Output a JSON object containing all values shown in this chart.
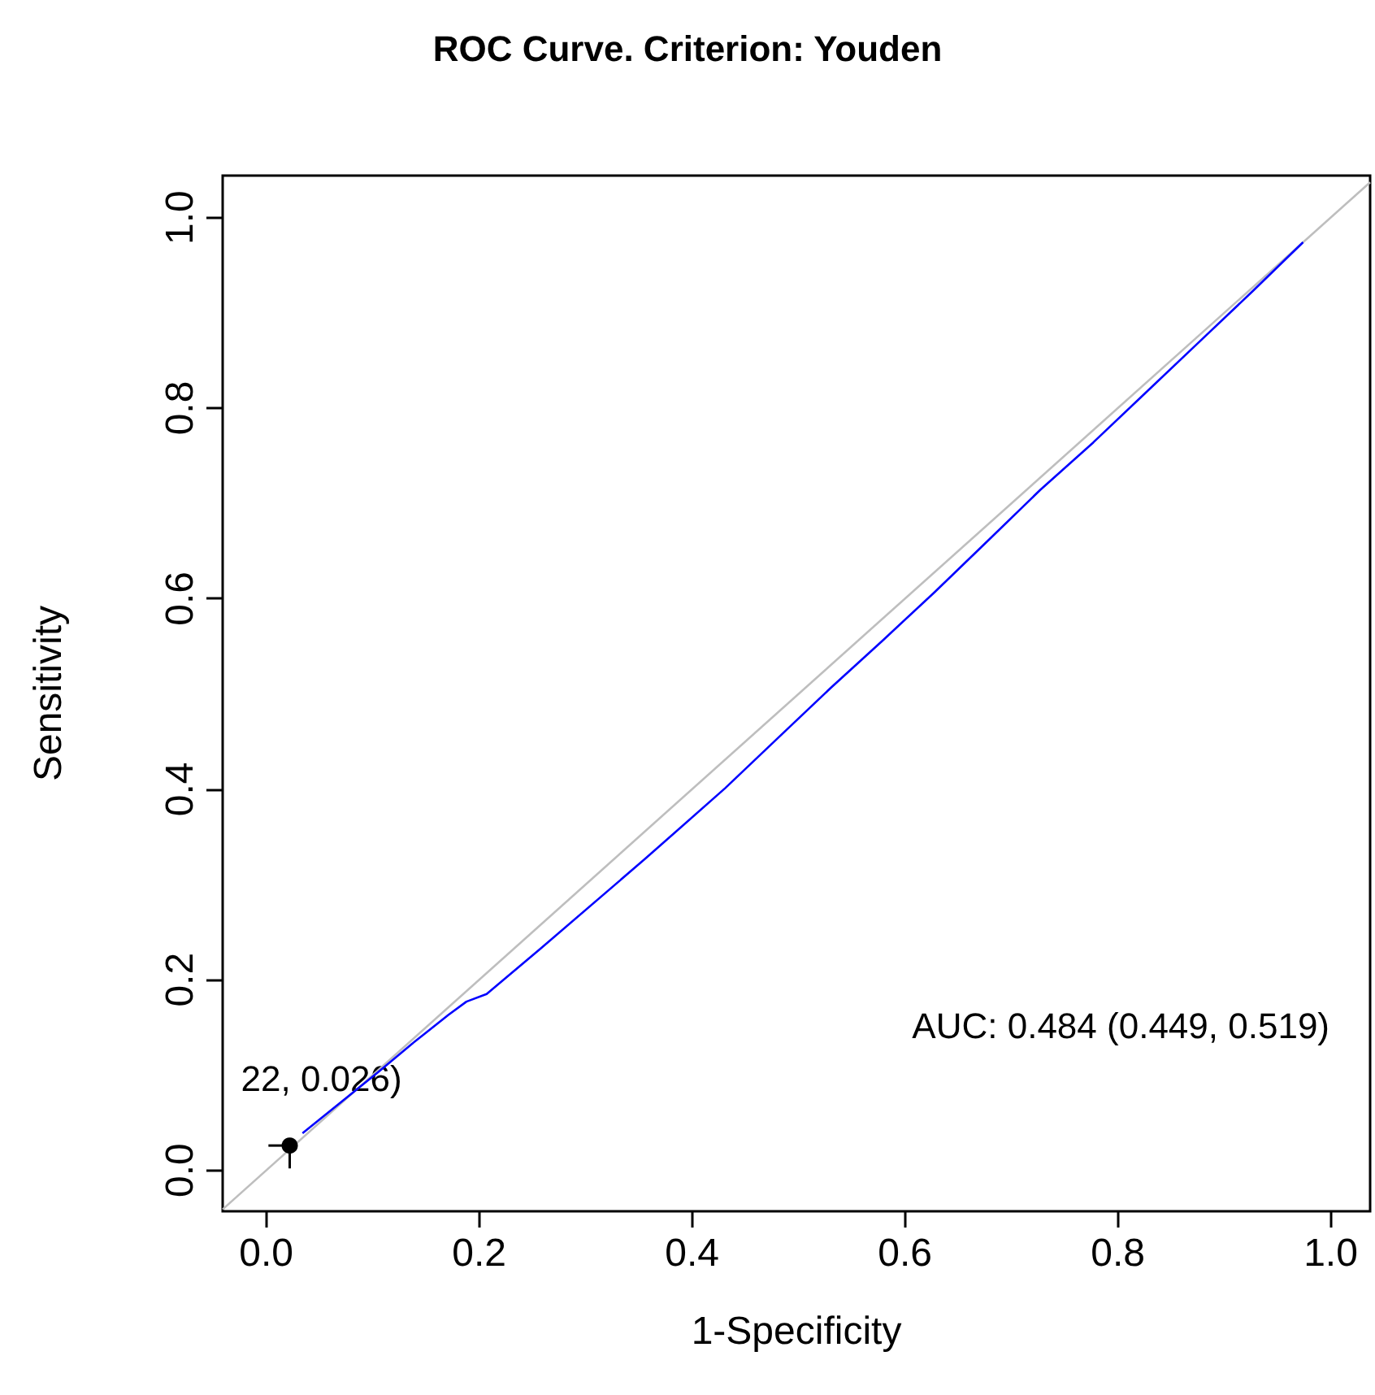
{
  "chart_data": {
    "type": "line",
    "title": "ROC Curve. Criterion: Youden",
    "xlabel": "1-Specificity",
    "ylabel": "Sensitivity",
    "xlim": [
      -0.041,
      1.037
    ],
    "ylim": [
      -0.043,
      1.044
    ],
    "xticks": [
      {
        "value": 0,
        "label": "0.0"
      },
      0.2,
      0.4,
      0.6,
      0.8,
      {
        "value": 1,
        "label": "1.0"
      }
    ],
    "yticks": [
      {
        "value": 0,
        "label": "0.0"
      },
      0.2,
      0.4,
      0.6,
      0.8,
      {
        "value": 1,
        "label": "1.0"
      }
    ],
    "series": [
      {
        "type": "line",
        "color": "#bebebe",
        "x": [
          -0.041,
          1.037
        ],
        "values": [
          -0.041,
          1.037
        ]
      },
      {
        "type": "line",
        "color": "#0000ff",
        "x": [
          0.034,
          0.104,
          0.136,
          0.171,
          0.188,
          0.207,
          0.258,
          0.356,
          0.431,
          0.479,
          0.53,
          0.579,
          0.628,
          0.679,
          0.727,
          0.777,
          0.826,
          0.876,
          0.927,
          0.974
        ],
        "values": [
          0.039,
          0.102,
          0.132,
          0.163,
          0.177,
          0.185,
          0.233,
          0.327,
          0.401,
          0.452,
          0.506,
          0.556,
          0.607,
          0.662,
          0.714,
          0.764,
          0.816,
          0.869,
          0.923,
          0.974
        ]
      },
      {
        "type": "scatter",
        "color": "#000000",
        "marker": "circle",
        "x": [
          0.022
        ],
        "values": [
          0.026
        ],
        "xerrors": [
          [
            0.002,
            0.022
          ]
        ],
        "errors": [
          [
            0.002,
            0.026
          ]
        ]
      }
    ],
    "annotations": [
      {
        "text": "22, 0.026)",
        "x": 0.022,
        "y": 0.026
      },
      "AUC: 0.484 (0.449, 0.519)"
    ]
  }
}
